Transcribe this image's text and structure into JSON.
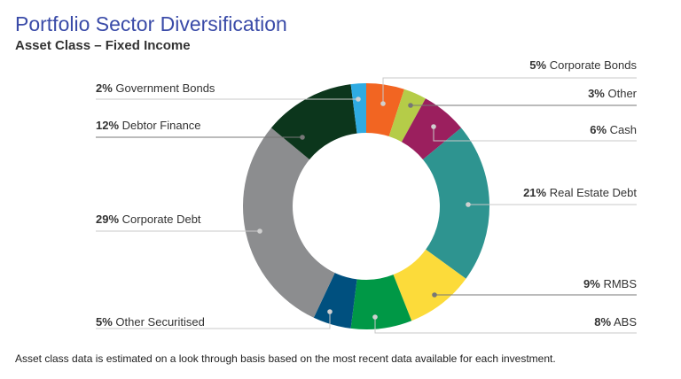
{
  "title": "Portfolio Sector Diversification",
  "subtitle": "Asset Class – Fixed Income",
  "footnote": "Asset class data is estimated on a look through basis based on the most recent data available for each investment.",
  "chart_data": {
    "type": "pie",
    "donut": true,
    "title": "Portfolio Sector Diversification",
    "subtitle": "Asset Class – Fixed Income",
    "slices": [
      {
        "name": "Corporate Bonds",
        "value": 5,
        "pct": "5%",
        "color": "#F26522"
      },
      {
        "name": "Other",
        "value": 3,
        "pct": "3%",
        "color": "#B5CC48"
      },
      {
        "name": "Cash",
        "value": 6,
        "pct": "6%",
        "color": "#9B1F5E"
      },
      {
        "name": "Real Estate Debt",
        "value": 21,
        "pct": "21%",
        "color": "#2E9490"
      },
      {
        "name": "RMBS",
        "value": 9,
        "pct": "9%",
        "color": "#FCDB3A"
      },
      {
        "name": "ABS",
        "value": 8,
        "pct": "8%",
        "color": "#009846"
      },
      {
        "name": "Other Securitised",
        "value": 5,
        "pct": "5%",
        "color": "#00507F"
      },
      {
        "name": "Corporate Debt",
        "value": 29,
        "pct": "29%",
        "color": "#8C8D8F"
      },
      {
        "name": "Debtor Finance",
        "value": 12,
        "pct": "12%",
        "color": "#0C361C"
      },
      {
        "name": "Government Bonds",
        "value": 2,
        "pct": "2%",
        "color": "#2FABE2"
      }
    ]
  }
}
